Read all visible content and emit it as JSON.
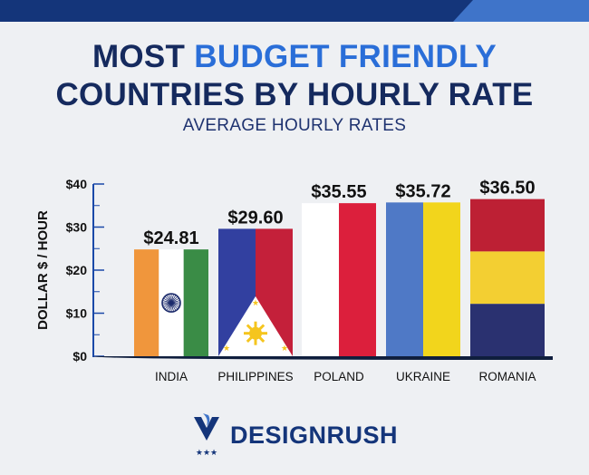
{
  "header": {
    "title_line1_prefix": "MOST ",
    "title_line1_accent": "BUDGET FRIENDLY",
    "title_line2": "COUNTRIES BY HOURLY RATE"
  },
  "colors": {
    "navy": "#152a5e",
    "accent_blue": "#2a6ed8",
    "bar_label": "#111111"
  },
  "chart_data": {
    "type": "bar",
    "title": "MOST BUDGET FRIENDLY COUNTRIES BY HOURLY RATE",
    "subtitle": "AVERAGE HOURLY RATES",
    "ylabel": "DOLLAR $ / HOUR",
    "xlabel": "",
    "ylim": [
      0,
      40
    ],
    "yticks": [
      0,
      10,
      20,
      30,
      40
    ],
    "ytick_labels": [
      "$0",
      "$10",
      "$20",
      "$30",
      "$40"
    ],
    "grid": false,
    "categories": [
      "INDIA",
      "PHILIPPINES",
      "POLAND",
      "UKRAINE",
      "ROMANIA"
    ],
    "values": [
      24.81,
      29.6,
      35.55,
      35.72,
      36.5
    ],
    "value_labels": [
      "$24.81",
      "$29.60",
      "$35.55",
      "$35.72",
      "$36.50"
    ],
    "bar_fills": [
      "flag-india",
      "flag-philippines",
      "flag-poland",
      "flag-ukraine",
      "flag-romania"
    ]
  },
  "brand": {
    "name": "DESIGNRUSH",
    "logo_icon": "designrush-logo-icon"
  }
}
